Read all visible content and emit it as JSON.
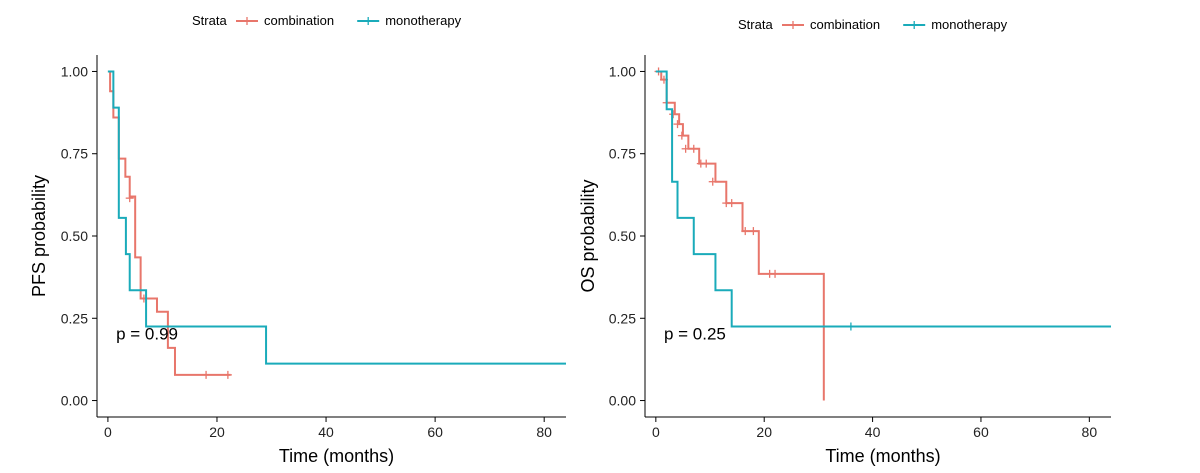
{
  "chart_data": [
    {
      "type": "line",
      "subtype": "kaplan-meier step",
      "legend_title": "Strata",
      "legend_placement": "top",
      "xlabel": "Time (months)",
      "ylabel": "PFS probability",
      "xlim": [
        -2,
        84
      ],
      "ylim": [
        -0.05,
        1.05
      ],
      "x_ticks": [
        0,
        20,
        40,
        60,
        80
      ],
      "y_ticks": [
        0,
        0.25,
        0.5,
        0.75,
        1.0
      ],
      "y_tick_labels": [
        "0.00",
        "0.25",
        "0.50",
        "0.75",
        "1.00"
      ],
      "grid": false,
      "annotation": {
        "text": "p = 0.99",
        "x": 1.5,
        "y": 0.185
      },
      "series": [
        {
          "name": "combination",
          "color": "#E8766B",
          "steps": [
            [
              0,
              1.0
            ],
            [
              0.4,
              0.94
            ],
            [
              1.0,
              0.86
            ],
            [
              2.0,
              0.735
            ],
            [
              3.2,
              0.68
            ],
            [
              4.0,
              0.62
            ],
            [
              5.0,
              0.435
            ],
            [
              6.0,
              0.31
            ],
            [
              9.0,
              0.27
            ],
            [
              11.0,
              0.16
            ],
            [
              12.3,
              0.078
            ],
            [
              22.5,
              0.078
            ]
          ],
          "censors": [
            [
              4.0,
              0.615
            ],
            [
              6.6,
              0.31
            ],
            [
              18.0,
              0.078
            ],
            [
              22.0,
              0.078
            ]
          ]
        },
        {
          "name": "monotherapy",
          "color": "#1AABBA",
          "steps": [
            [
              0,
              1.0
            ],
            [
              1.0,
              0.89
            ],
            [
              2.0,
              0.555
            ],
            [
              3.3,
              0.445
            ],
            [
              4.0,
              0.335
            ],
            [
              7.0,
              0.225
            ],
            [
              29.0,
              0.112
            ],
            [
              84,
              0.112
            ]
          ],
          "censors": []
        }
      ]
    },
    {
      "type": "line",
      "subtype": "kaplan-meier step",
      "legend_title": "Strata",
      "legend_placement": "top",
      "xlabel": "Time (months)",
      "ylabel": "OS probability",
      "xlim": [
        -2,
        84
      ],
      "ylim": [
        -0.05,
        1.05
      ],
      "x_ticks": [
        0,
        20,
        40,
        60,
        80
      ],
      "y_ticks": [
        0,
        0.25,
        0.5,
        0.75,
        1.0
      ],
      "y_tick_labels": [
        "0.00",
        "0.25",
        "0.50",
        "0.75",
        "1.00"
      ],
      "grid": false,
      "annotation": {
        "text": "p = 0.25",
        "x": 1.5,
        "y": 0.185
      },
      "series": [
        {
          "name": "combination",
          "color": "#E8766B",
          "steps": [
            [
              0,
              1.0
            ],
            [
              1.0,
              0.975
            ],
            [
              2.0,
              0.905
            ],
            [
              3.5,
              0.87
            ],
            [
              4.3,
              0.84
            ],
            [
              5.0,
              0.805
            ],
            [
              6.0,
              0.765
            ],
            [
              8.0,
              0.72
            ],
            [
              11.0,
              0.665
            ],
            [
              13.0,
              0.6
            ],
            [
              16.0,
              0.515
            ],
            [
              19.0,
              0.385
            ],
            [
              31.0,
              0.0
            ]
          ],
          "censors": [
            [
              0.5,
              1.0
            ],
            [
              1.5,
              0.975
            ],
            [
              2.0,
              0.905
            ],
            [
              3.2,
              0.87
            ],
            [
              4.0,
              0.84
            ],
            [
              4.8,
              0.805
            ],
            [
              5.5,
              0.765
            ],
            [
              7.0,
              0.765
            ],
            [
              8.3,
              0.72
            ],
            [
              9.3,
              0.72
            ],
            [
              10.5,
              0.665
            ],
            [
              13.0,
              0.6
            ],
            [
              14.0,
              0.6
            ],
            [
              16.5,
              0.515
            ],
            [
              18.0,
              0.515
            ],
            [
              21.0,
              0.385
            ],
            [
              22.0,
              0.385
            ]
          ]
        },
        {
          "name": "monotherapy",
          "color": "#1AABBA",
          "steps": [
            [
              0,
              1.0
            ],
            [
              2.0,
              0.885
            ],
            [
              3.0,
              0.665
            ],
            [
              4.0,
              0.555
            ],
            [
              7.0,
              0.445
            ],
            [
              11.0,
              0.335
            ],
            [
              14.0,
              0.225
            ],
            [
              84,
              0.225
            ]
          ],
          "censors": [
            [
              36.0,
              0.225
            ]
          ]
        }
      ]
    }
  ]
}
